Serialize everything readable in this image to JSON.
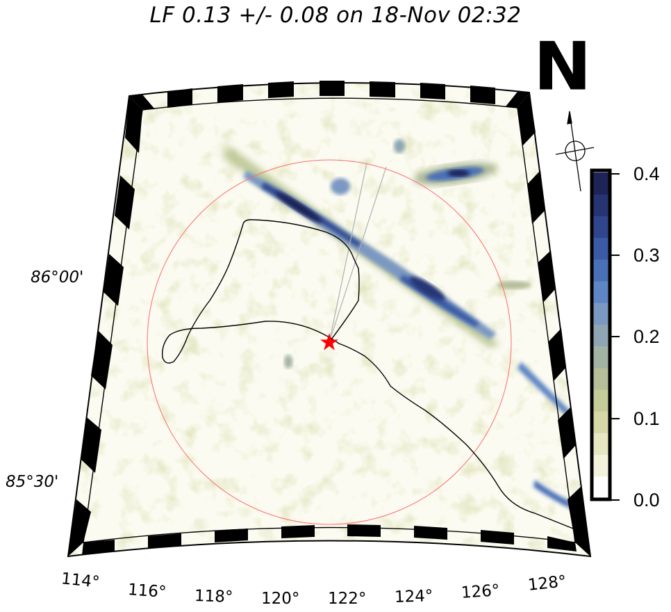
{
  "title": "LF 0.13 +/- 0.08 on 18-Nov 02:32",
  "north_label": "N",
  "latitude_labels": [
    "86°00'",
    "85°30'"
  ],
  "longitude_labels": [
    "114°",
    "116°",
    "118°",
    "120°",
    "122°",
    "124°",
    "126°",
    "128°"
  ],
  "colorbar": {
    "ticks": [
      "0.4",
      "0.3",
      "0.2",
      "0.1",
      "0.0"
    ],
    "min": 0.0,
    "max": 0.4,
    "colors_low_to_high": [
      "#ffffff",
      "#f3f3dc",
      "#e6e6c0",
      "#d6d8a8",
      "#c6cc98",
      "#b4be98",
      "#a2b3a4",
      "#8ea6b4",
      "#7a98c2",
      "#5f86c4",
      "#4a70b8",
      "#3b5ba6",
      "#2f468f",
      "#273474",
      "#1e2457"
    ]
  },
  "colors": {
    "range_circle": "#ff6b6b",
    "station_marker": "#ff0000",
    "track": "#000000",
    "beam_lines": "#b0b0b0"
  },
  "markers": {
    "station": "star-icon",
    "compass": "compass-crosshair-icon"
  }
}
